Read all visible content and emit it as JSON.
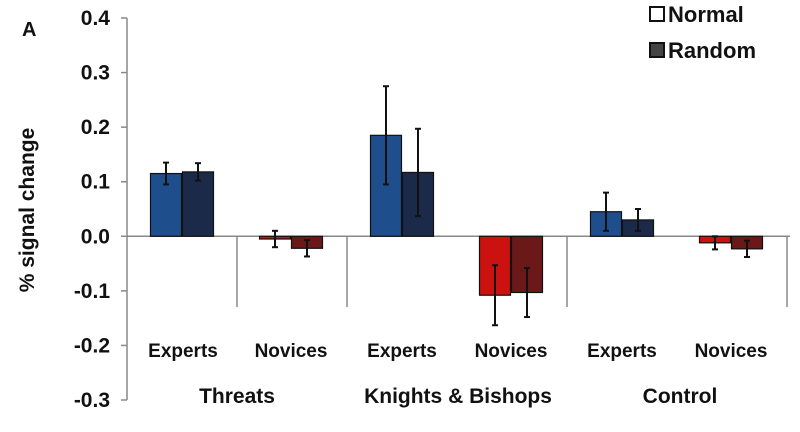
{
  "chart_data": {
    "type": "bar",
    "panel_label": "A",
    "ylabel": "% signal change",
    "ylim": [
      -0.3,
      0.4
    ],
    "yticks": [
      "0.4",
      "0.3",
      "0.2",
      "0.1",
      "0.0",
      "-0.1",
      "-0.2",
      "-0.3"
    ],
    "ytick_values": [
      0.4,
      0.3,
      0.2,
      0.1,
      0.0,
      -0.1,
      -0.2,
      -0.3
    ],
    "groups": [
      "Threats",
      "Knights & Bishops",
      "Control"
    ],
    "categories": [
      "Experts",
      "Novices",
      "Experts",
      "Novices",
      "Experts",
      "Novices"
    ],
    "legend": [
      {
        "name": "Normal",
        "style": "open"
      },
      {
        "name": "Random",
        "style": "filled"
      }
    ],
    "series": [
      {
        "name": "Normal",
        "values": [
          0.115,
          -0.005,
          0.185,
          -0.108,
          0.045,
          -0.012
        ],
        "errors": [
          0.02,
          0.015,
          0.09,
          0.055,
          0.035,
          0.012
        ]
      },
      {
        "name": "Random",
        "values": [
          0.118,
          -0.022,
          0.117,
          -0.103,
          0.03,
          -0.023
        ],
        "errors": [
          0.016,
          0.015,
          0.08,
          0.045,
          0.02,
          0.015
        ]
      }
    ],
    "colors": {
      "experts_normal": "#1f4e8c",
      "experts_random": "#1c2a4a",
      "novices_normal": "#cc1111",
      "novices_random": "#6b1818"
    }
  }
}
